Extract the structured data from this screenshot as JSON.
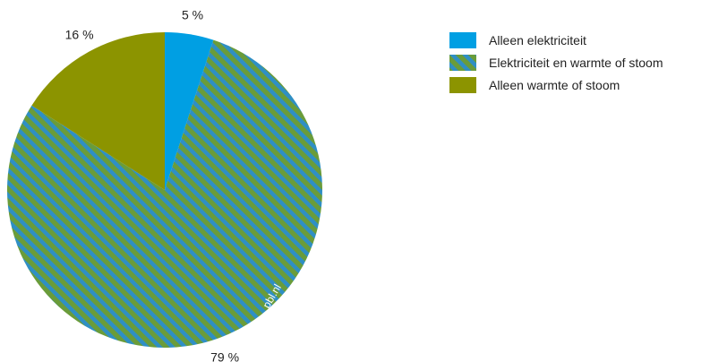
{
  "chart_data": {
    "type": "pie",
    "categories": [
      "Alleen elektriciteit",
      "Elektriciteit en warmte of stoom",
      "Alleen warmte of stoom"
    ],
    "values": [
      5,
      79,
      16
    ],
    "labels": [
      "5 %",
      "79 %",
      "16 %"
    ],
    "legend_position": "right",
    "start_angle": "12 o'clock, clockwise",
    "watermark": "pbl.nl",
    "colors": [
      "#009fe3",
      "hatched #6a9c3a/#2f8fc4",
      "#8c9400"
    ]
  }
}
